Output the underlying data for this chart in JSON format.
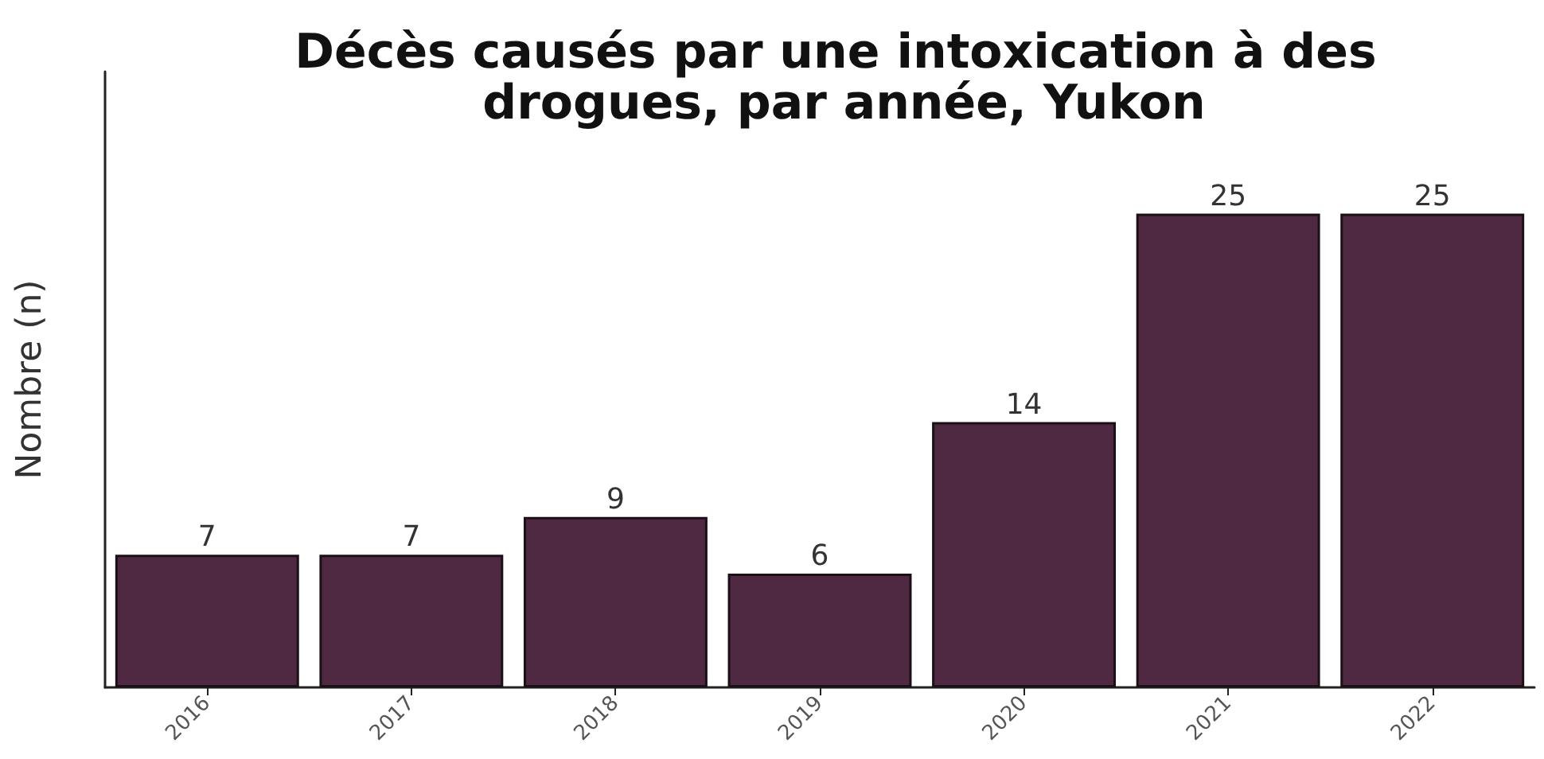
{
  "chart_data": {
    "type": "bar",
    "title": "Décès causés par une intoxication à des drogues, par année, Yukon",
    "ylabel": "Nombre (n)",
    "categories": [
      "2016",
      "2017",
      "2018",
      "2019",
      "2020",
      "2021",
      "2022"
    ],
    "values": [
      7,
      7,
      9,
      6,
      14,
      25,
      25
    ],
    "color": "#4f2942",
    "data_labels": true
  }
}
